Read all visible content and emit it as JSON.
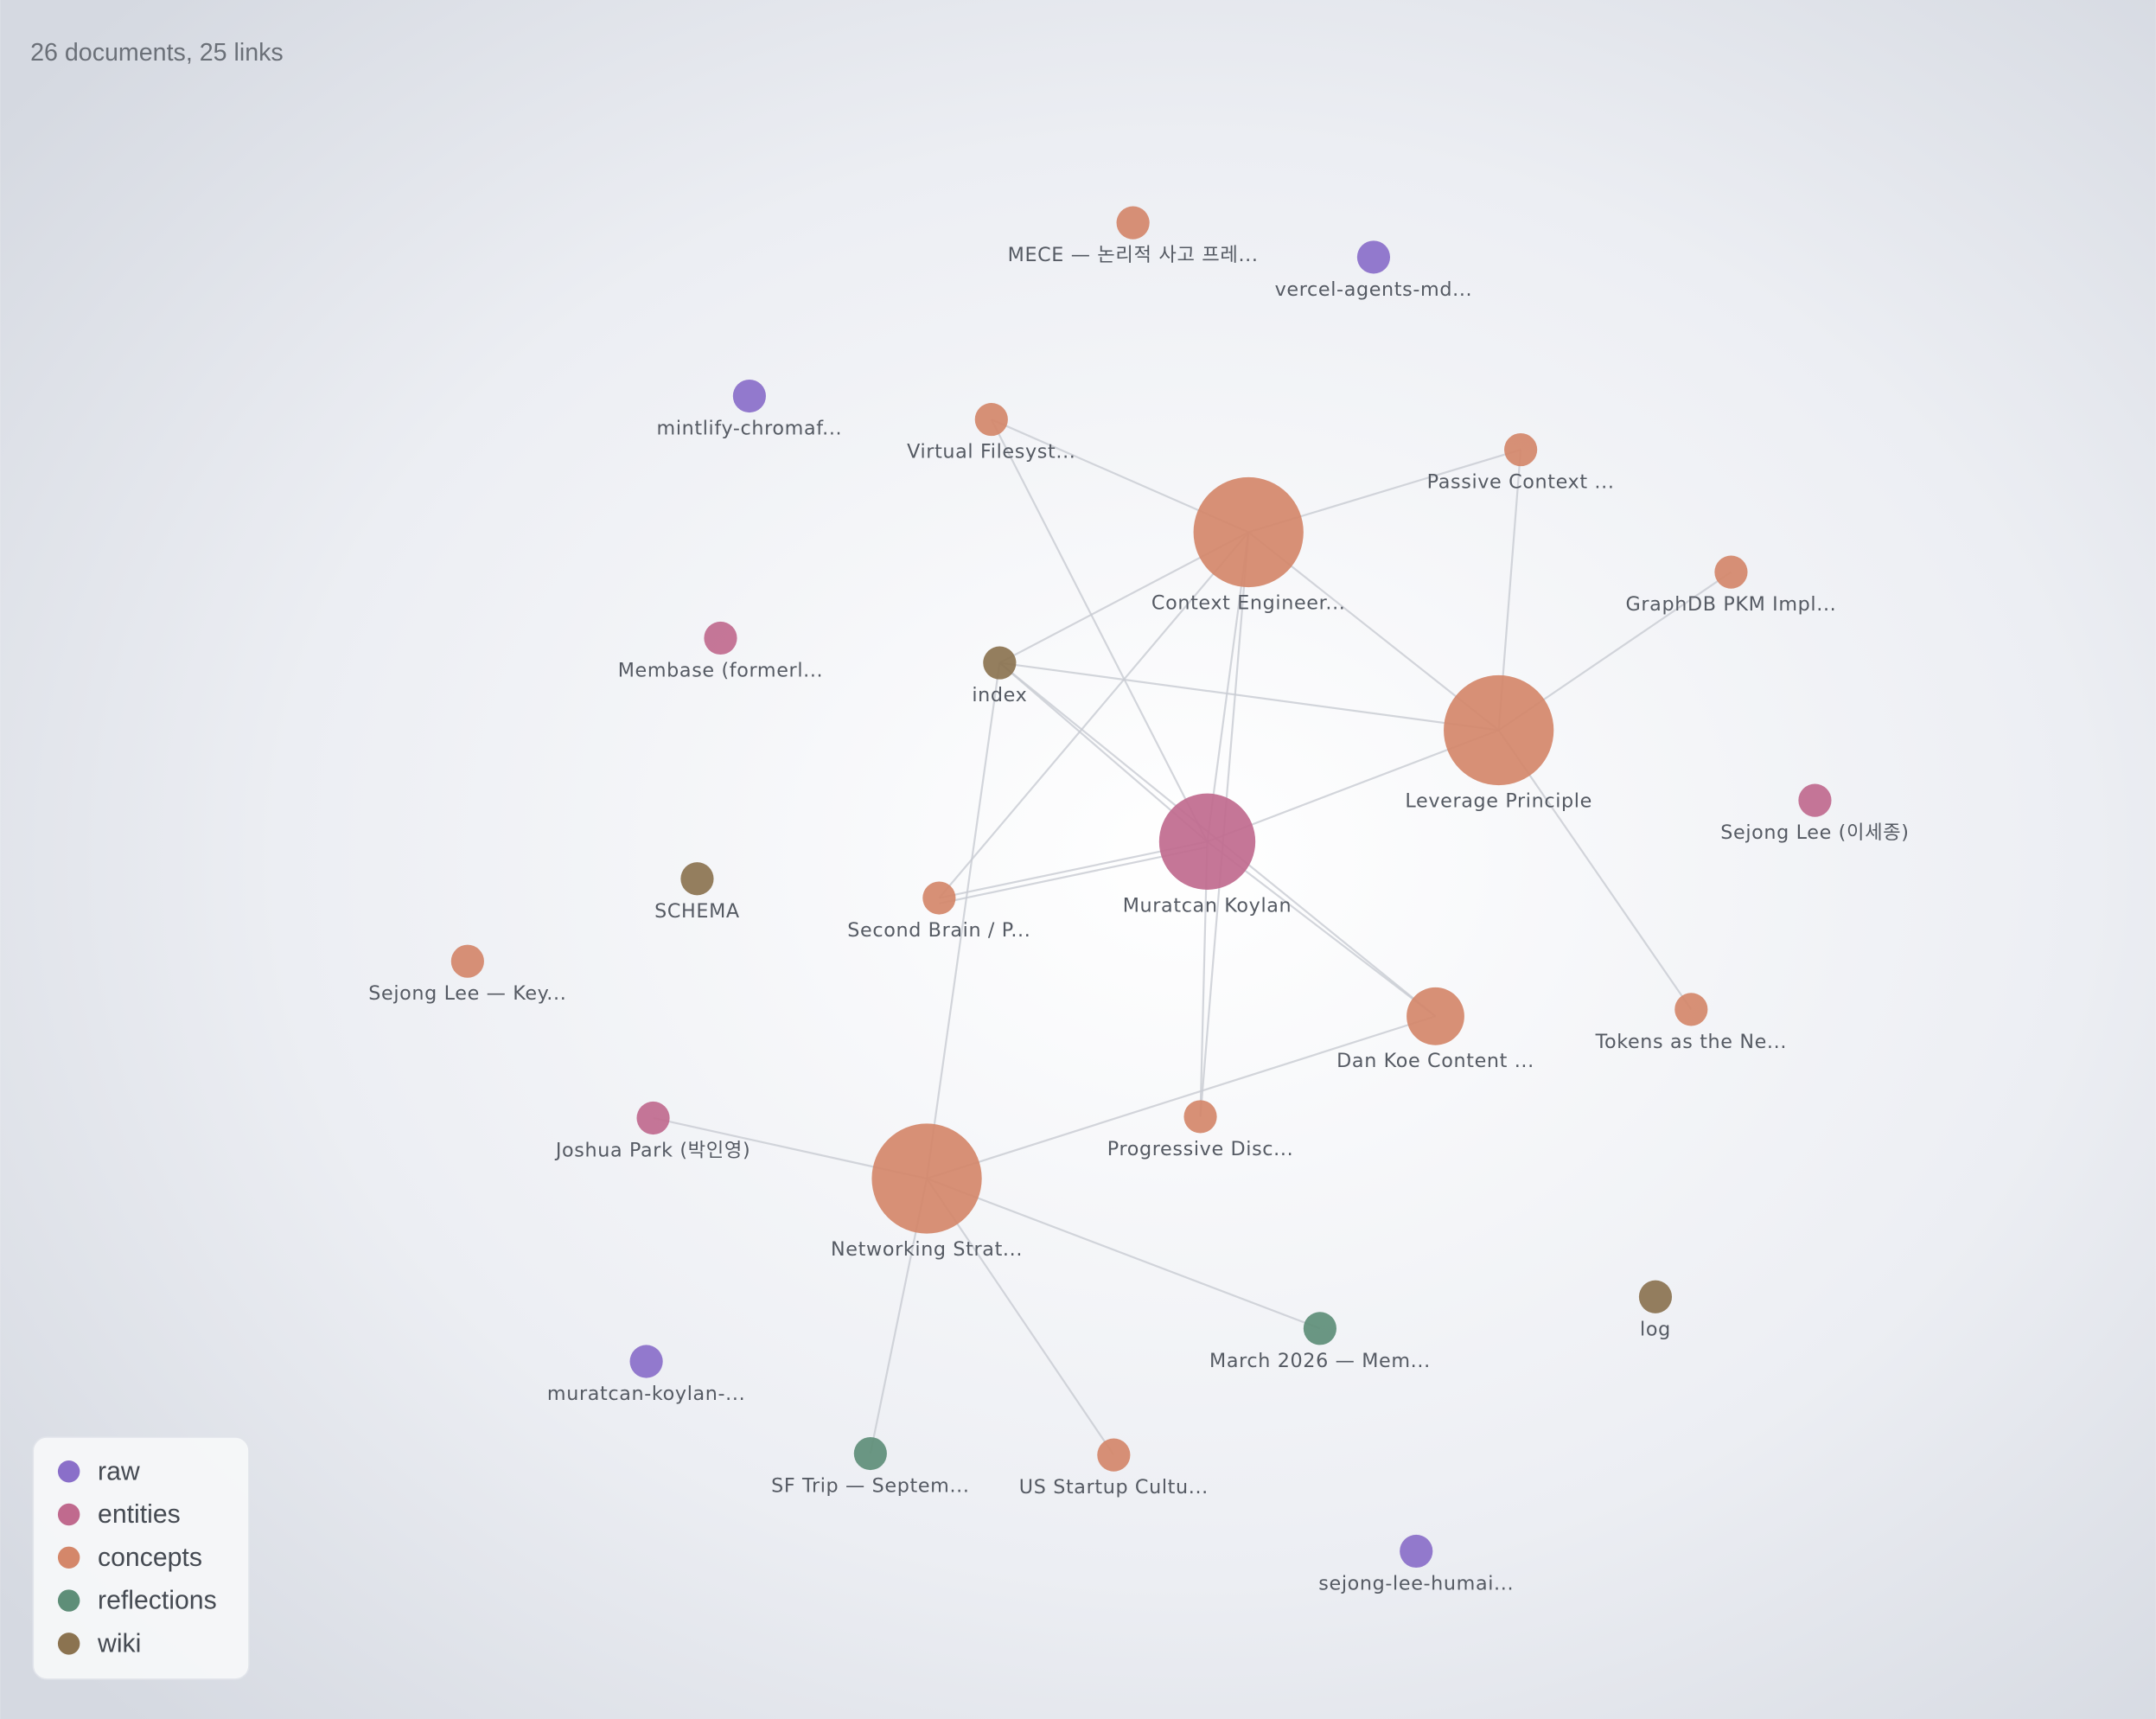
{
  "header": {
    "summary": "26 documents, 25 links"
  },
  "legend": [
    {
      "label": "raw",
      "color": "#8a6fc9"
    },
    {
      "label": "entities",
      "color": "#c06a8e"
    },
    {
      "label": "concepts",
      "color": "#d4876a"
    },
    {
      "label": "reflections",
      "color": "#5e8e78"
    },
    {
      "label": "wiki",
      "color": "#8b7350"
    }
  ],
  "nodes": [
    {
      "label": "MECE — 논리적 사고 프레...",
      "group": "concepts"
    },
    {
      "label": "vercel-agents-md...",
      "group": "raw"
    },
    {
      "label": "mintlify-chromaf...",
      "group": "raw"
    },
    {
      "label": "Virtual Filesyst...",
      "group": "concepts"
    },
    {
      "label": "Passive Context ...",
      "group": "concepts"
    },
    {
      "label": "Context Engineer...",
      "group": "concepts"
    },
    {
      "label": "GraphDB PKM Impl...",
      "group": "concepts"
    },
    {
      "label": "Membase (formerl...",
      "group": "entities"
    },
    {
      "label": "index",
      "group": "wiki"
    },
    {
      "label": "Leverage Principle",
      "group": "concepts"
    },
    {
      "label": "Sejong Lee (이세종)",
      "group": "entities"
    },
    {
      "label": "Muratcan Koylan",
      "group": "entities"
    },
    {
      "label": "SCHEMA",
      "group": "wiki"
    },
    {
      "label": "Second Brain / P...",
      "group": "concepts"
    },
    {
      "label": "Sejong Lee — Key...",
      "group": "concepts"
    },
    {
      "label": "Dan Koe Content ...",
      "group": "concepts"
    },
    {
      "label": "Tokens as the Ne...",
      "group": "concepts"
    },
    {
      "label": "Joshua Park (박인영)",
      "group": "entities"
    },
    {
      "label": "Progressive Disc...",
      "group": "concepts"
    },
    {
      "label": "Networking Strat...",
      "group": "concepts"
    },
    {
      "label": "March 2026 — Mem...",
      "group": "reflections"
    },
    {
      "label": "log",
      "group": "wiki"
    },
    {
      "label": "muratcan-koylan-...",
      "group": "raw"
    },
    {
      "label": "SF Trip — Septem...",
      "group": "reflections"
    },
    {
      "label": "US Startup Cultu...",
      "group": "concepts"
    },
    {
      "label": "sejong-lee-humai...",
      "group": "raw"
    }
  ]
}
